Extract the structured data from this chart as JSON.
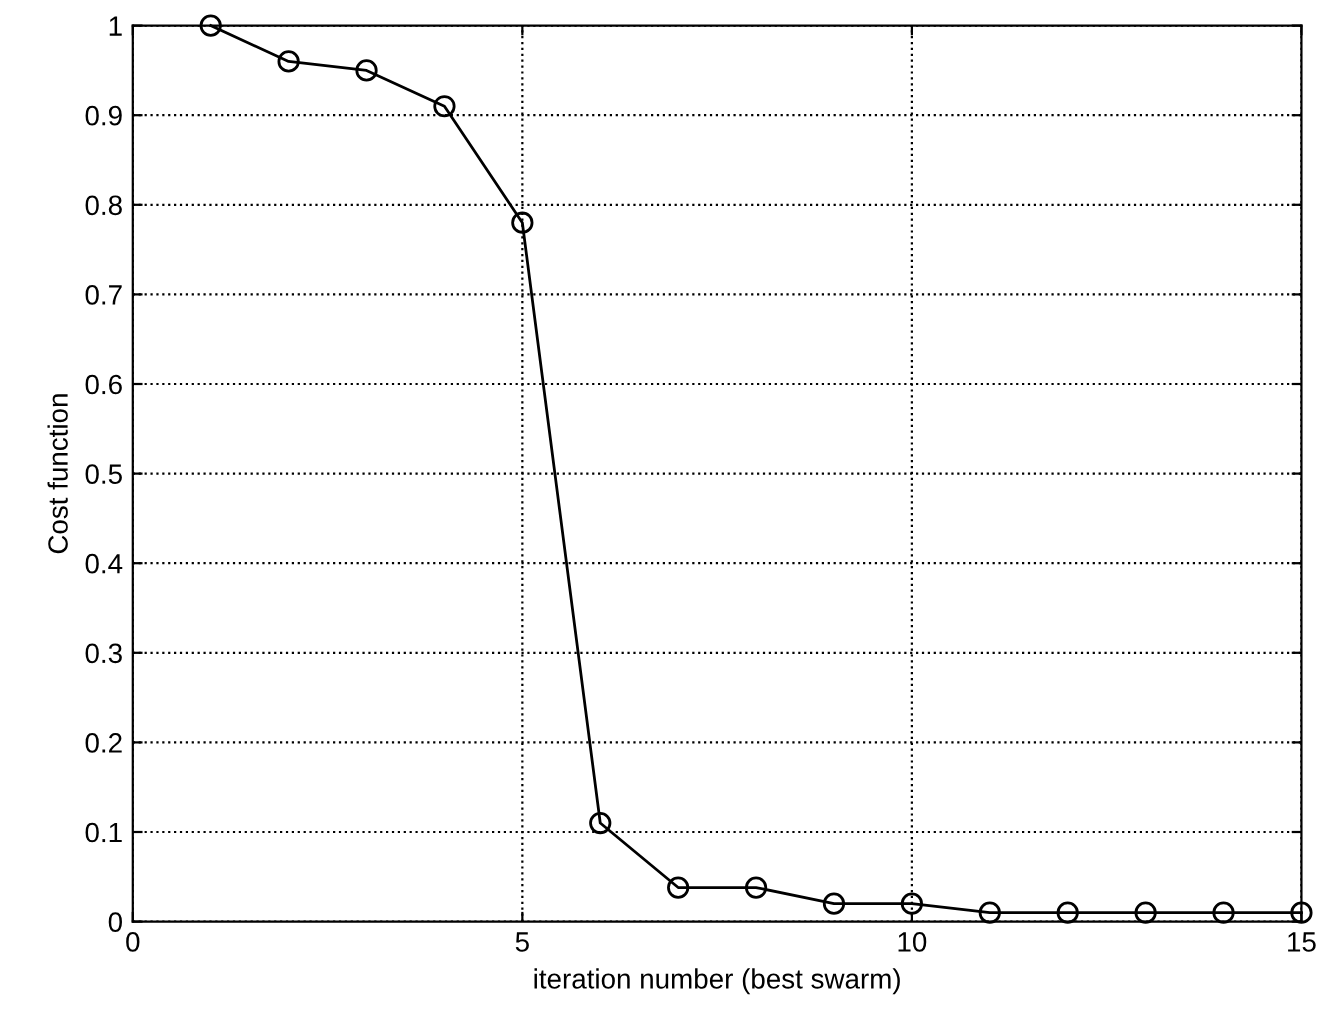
{
  "chart_data": {
    "type": "line",
    "xlabel": "iteration number (best swarm)",
    "ylabel": "Cost function",
    "x": [
      1,
      2,
      3,
      4,
      5,
      6,
      7,
      8,
      9,
      10,
      11,
      12,
      13,
      14,
      15
    ],
    "series": [
      {
        "color": "#000000",
        "values": [
          1.0,
          0.96,
          0.95,
          0.91,
          0.78,
          0.11,
          0.038,
          0.038,
          0.02,
          0.02,
          0.01,
          0.01,
          0.01,
          0.01,
          0.01
        ]
      }
    ],
    "xlim": [
      0,
      15
    ],
    "xticks": [
      0,
      5,
      10,
      15
    ],
    "ylim": [
      0,
      1
    ],
    "yticks": [
      0,
      0.1,
      0.2,
      0.3,
      0.4,
      0.5,
      0.6,
      0.7,
      0.8,
      0.9,
      1
    ],
    "grid": true,
    "marker": "circle",
    "line_style": "solid"
  }
}
